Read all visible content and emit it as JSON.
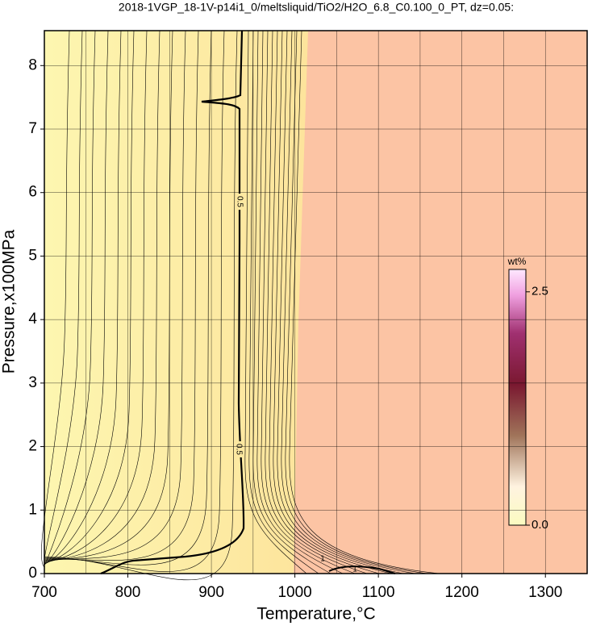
{
  "chart_data": {
    "type": "contour",
    "title": "2018-1VGP_18-1V-p14i1_0/meltsliquid/TiO2/H2O_6.8_C0.100_0_PT, dz=0.05:",
    "x_label": "Temperature,°C",
    "y_label": "Pressure,x100MPa",
    "xlim": [
      700,
      1350
    ],
    "ylim": [
      0,
      8.55
    ],
    "xticks": [
      700,
      800,
      900,
      1000,
      1100,
      1200,
      1300
    ],
    "xgrid": [
      750,
      800,
      850,
      900,
      950,
      1000,
      1050,
      1100,
      1150,
      1200,
      1250,
      1300
    ],
    "yticks": [
      0,
      1,
      2,
      3,
      4,
      5,
      6,
      7,
      8
    ],
    "grid": true,
    "levels": [
      0.5,
      1
    ],
    "colorbar": {
      "label": "wt%",
      "lim": [
        0,
        2.74
      ],
      "ticks": [
        {
          "value": 0,
          "label": "0.0"
        },
        2.5
      ]
    }
  }
}
